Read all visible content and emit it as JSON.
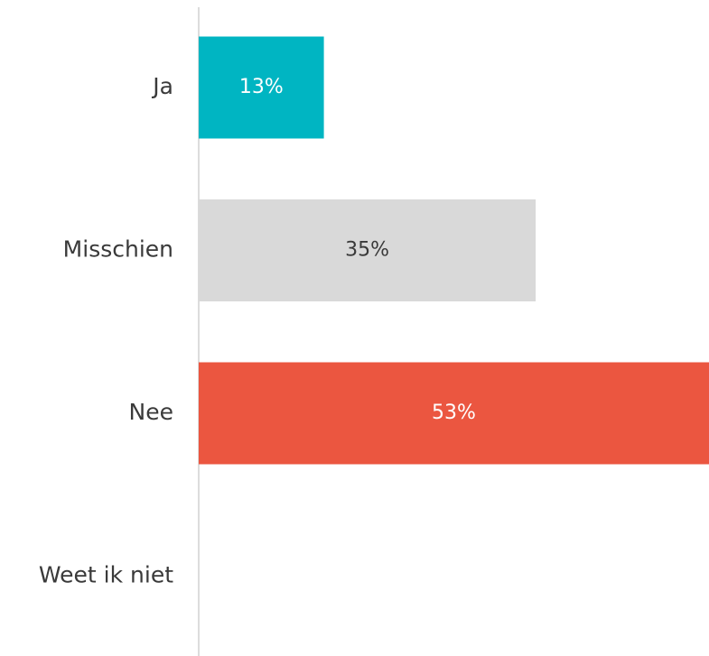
{
  "chart_data": {
    "type": "bar",
    "orientation": "horizontal",
    "categories": [
      "Ja",
      "Misschien",
      "Nee",
      "Weet ik niet"
    ],
    "values": [
      13,
      35,
      53,
      0
    ],
    "value_labels": [
      "13%",
      "35%",
      "53%",
      null
    ],
    "colors": [
      "#00b5c2",
      "#d9d9d9",
      "#eb5640",
      "#d9d9d9"
    ],
    "xlim": [
      0,
      53
    ]
  }
}
